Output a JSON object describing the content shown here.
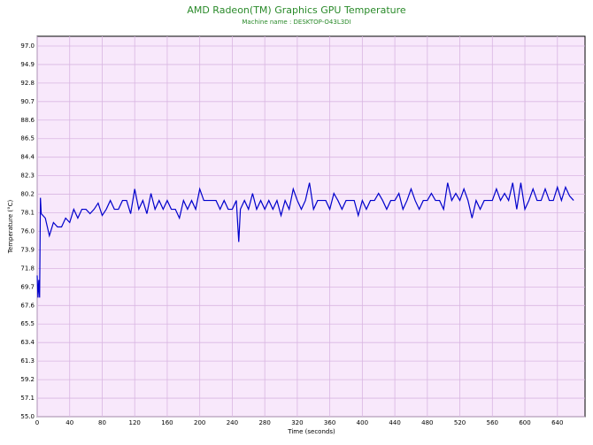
{
  "chart_data": {
    "type": "line",
    "title": "AMD Radeon(TM) Graphics GPU Temperature",
    "subtitle": "Machine name : DESKTOP-O43L3DI",
    "x_label": "Time (seconds)",
    "y_label": "Temperature (°C)",
    "xlim": [
      0,
      674
    ],
    "ylim": [
      55,
      98.1
    ],
    "xticks": [
      0,
      40,
      80,
      120,
      160,
      200,
      240,
      280,
      320,
      360,
      400,
      440,
      480,
      520,
      560,
      600,
      640
    ],
    "yticks": [
      {
        "value": 55,
        "label": "55.0"
      },
      57.1,
      59.2,
      61.3,
      63.4,
      65.5,
      67.6,
      69.7,
      71.8,
      73.9,
      {
        "value": 76,
        "label": "76.0"
      },
      78.1,
      80.2,
      82.3,
      84.4,
      86.5,
      88.6,
      90.7,
      92.8,
      94.9,
      {
        "value": 97,
        "label": "97.0"
      }
    ],
    "grid": true,
    "x": [
      0,
      1,
      2,
      3,
      4,
      5,
      10,
      15,
      20,
      25,
      30,
      35,
      40,
      45,
      50,
      55,
      60,
      65,
      70,
      75,
      80,
      85,
      90,
      95,
      100,
      105,
      110,
      115,
      120,
      125,
      130,
      135,
      140,
      145,
      150,
      155,
      160,
      165,
      170,
      175,
      180,
      185,
      190,
      195,
      200,
      205,
      210,
      215,
      220,
      225,
      230,
      235,
      240,
      245,
      248,
      250,
      255,
      260,
      265,
      270,
      275,
      280,
      285,
      290,
      295,
      300,
      305,
      310,
      315,
      320,
      325,
      330,
      335,
      340,
      345,
      350,
      355,
      360,
      365,
      370,
      375,
      380,
      385,
      390,
      395,
      400,
      405,
      410,
      415,
      420,
      425,
      430,
      435,
      440,
      445,
      450,
      455,
      460,
      465,
      470,
      475,
      480,
      485,
      490,
      495,
      500,
      505,
      510,
      515,
      520,
      525,
      530,
      535,
      540,
      545,
      550,
      555,
      560,
      565,
      570,
      575,
      580,
      585,
      590,
      595,
      600,
      605,
      610,
      615,
      620,
      625,
      630,
      635,
      640,
      645,
      650,
      655,
      660
    ],
    "series": [
      {
        "name": "GPU Temperature",
        "color": "#0000cc",
        "values": [
          71,
          68.5,
          70.5,
          68.5,
          79.8,
          78,
          77.5,
          75.5,
          77,
          76.5,
          76.5,
          77.5,
          77,
          78.5,
          77.5,
          78.5,
          78.5,
          78,
          78.5,
          79.2,
          77.8,
          78.5,
          79.5,
          78.5,
          78.5,
          79.5,
          79.5,
          78,
          80.8,
          78.5,
          79.5,
          78,
          80.3,
          78.5,
          79.5,
          78.5,
          79.5,
          78.5,
          78.5,
          77.5,
          79.5,
          78.5,
          79.5,
          78.5,
          80.8,
          79.5,
          79.5,
          79.5,
          79.5,
          78.5,
          79.5,
          78.5,
          78.5,
          79.5,
          74.8,
          78.5,
          79.5,
          78.5,
          80.3,
          78.5,
          79.5,
          78.5,
          79.5,
          78.5,
          79.5,
          77.8,
          79.5,
          78.5,
          80.8,
          79.5,
          78.5,
          79.5,
          81.5,
          78.5,
          79.5,
          79.5,
          79.5,
          78.5,
          80.3,
          79.5,
          78.5,
          79.5,
          79.5,
          79.5,
          77.8,
          79.5,
          78.5,
          79.5,
          79.5,
          80.3,
          79.5,
          78.5,
          79.5,
          79.5,
          80.3,
          78.5,
          79.5,
          80.8,
          79.5,
          78.5,
          79.5,
          79.5,
          80.3,
          79.5,
          79.5,
          78.5,
          81.5,
          79.5,
          80.3,
          79.5,
          80.8,
          79.5,
          77.5,
          79.5,
          78.5,
          79.5,
          79.5,
          79.5,
          80.8,
          79.5,
          80.3,
          79.5,
          81.5,
          78.5,
          81.5,
          78.5,
          79.5,
          80.8,
          79.5,
          79.5,
          80.8,
          79.5,
          79.5,
          81,
          79.5,
          81,
          80,
          79.5
        ]
      }
    ]
  }
}
